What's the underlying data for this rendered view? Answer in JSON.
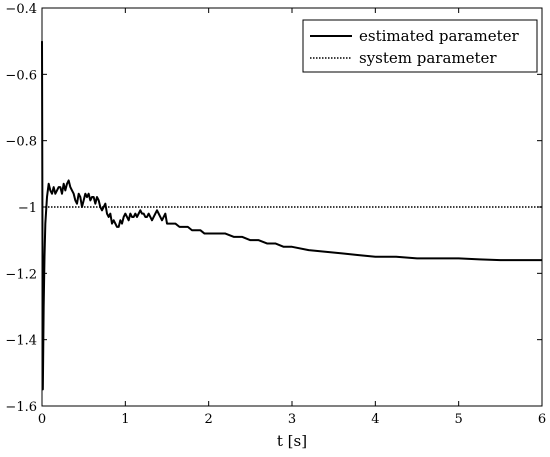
{
  "chart_data": {
    "type": "line",
    "title": "",
    "xlabel": "t [s]",
    "ylabel": "",
    "xlim": [
      0,
      6
    ],
    "ylim": [
      -1.6,
      -0.4
    ],
    "grid": false,
    "legend_position": "top-right",
    "x_ticks": [
      0,
      1,
      2,
      3,
      4,
      5,
      6
    ],
    "x_tick_labels": [
      "0",
      "1",
      "2",
      "3",
      "4",
      "5",
      "6"
    ],
    "y_ticks": [
      -1.6,
      -1.4,
      -1.2,
      -1.0,
      -0.8,
      -0.6,
      -0.4
    ],
    "y_tick_labels": [
      "−1.6",
      "−1.4",
      "−1.2",
      "−1",
      "−0.8",
      "−0.6",
      "−0.4"
    ],
    "series": [
      {
        "name": "estimated parameter",
        "style": "solid",
        "color": "#000000",
        "x": [
          0,
          0.01,
          0.02,
          0.03,
          0.04,
          0.06,
          0.08,
          0.1,
          0.12,
          0.14,
          0.16,
          0.18,
          0.2,
          0.22,
          0.24,
          0.26,
          0.28,
          0.3,
          0.32,
          0.34,
          0.36,
          0.38,
          0.4,
          0.42,
          0.44,
          0.46,
          0.48,
          0.5,
          0.52,
          0.54,
          0.56,
          0.58,
          0.6,
          0.62,
          0.64,
          0.66,
          0.68,
          0.7,
          0.72,
          0.74,
          0.76,
          0.78,
          0.8,
          0.82,
          0.84,
          0.86,
          0.88,
          0.9,
          0.92,
          0.94,
          0.96,
          0.98,
          1.0,
          1.02,
          1.04,
          1.06,
          1.08,
          1.1,
          1.12,
          1.14,
          1.16,
          1.18,
          1.2,
          1.22,
          1.24,
          1.26,
          1.28,
          1.3,
          1.32,
          1.34,
          1.36,
          1.38,
          1.4,
          1.42,
          1.44,
          1.46,
          1.48,
          1.5,
          1.55,
          1.6,
          1.65,
          1.7,
          1.75,
          1.8,
          1.85,
          1.9,
          1.95,
          2.0,
          2.1,
          2.2,
          2.3,
          2.4,
          2.5,
          2.6,
          2.7,
          2.8,
          2.9,
          3.0,
          3.2,
          3.4,
          3.6,
          3.8,
          4.0,
          4.25,
          4.5,
          4.75,
          5.0,
          5.25,
          5.5,
          5.75,
          6.0
        ],
        "y": [
          -0.5,
          -1.55,
          -1.3,
          -1.15,
          -1.05,
          -0.97,
          -0.93,
          -0.95,
          -0.96,
          -0.94,
          -0.96,
          -0.95,
          -0.94,
          -0.94,
          -0.96,
          -0.93,
          -0.95,
          -0.93,
          -0.92,
          -0.94,
          -0.95,
          -0.96,
          -0.98,
          -0.99,
          -0.96,
          -0.97,
          -1.0,
          -0.98,
          -0.96,
          -0.97,
          -0.96,
          -0.98,
          -0.97,
          -0.97,
          -0.99,
          -0.97,
          -0.98,
          -1.0,
          -1.01,
          -1.0,
          -0.99,
          -1.02,
          -1.03,
          -1.02,
          -1.05,
          -1.04,
          -1.05,
          -1.06,
          -1.06,
          -1.04,
          -1.05,
          -1.03,
          -1.02,
          -1.03,
          -1.04,
          -1.02,
          -1.03,
          -1.03,
          -1.02,
          -1.03,
          -1.02,
          -1.01,
          -1.02,
          -1.02,
          -1.03,
          -1.03,
          -1.02,
          -1.03,
          -1.04,
          -1.03,
          -1.02,
          -1.01,
          -1.02,
          -1.03,
          -1.04,
          -1.03,
          -1.02,
          -1.05,
          -1.05,
          -1.05,
          -1.06,
          -1.06,
          -1.06,
          -1.07,
          -1.07,
          -1.07,
          -1.08,
          -1.08,
          -1.08,
          -1.08,
          -1.09,
          -1.09,
          -1.1,
          -1.1,
          -1.11,
          -1.11,
          -1.12,
          -1.12,
          -1.13,
          -1.135,
          -1.14,
          -1.145,
          -1.15,
          -1.15,
          -1.155,
          -1.155,
          -1.155,
          -1.158,
          -1.16,
          -1.16,
          -1.16
        ]
      },
      {
        "name": "system parameter",
        "style": "dotted",
        "color": "#000000",
        "x": [
          0,
          6
        ],
        "y": [
          -1.0,
          -1.0
        ]
      }
    ]
  }
}
